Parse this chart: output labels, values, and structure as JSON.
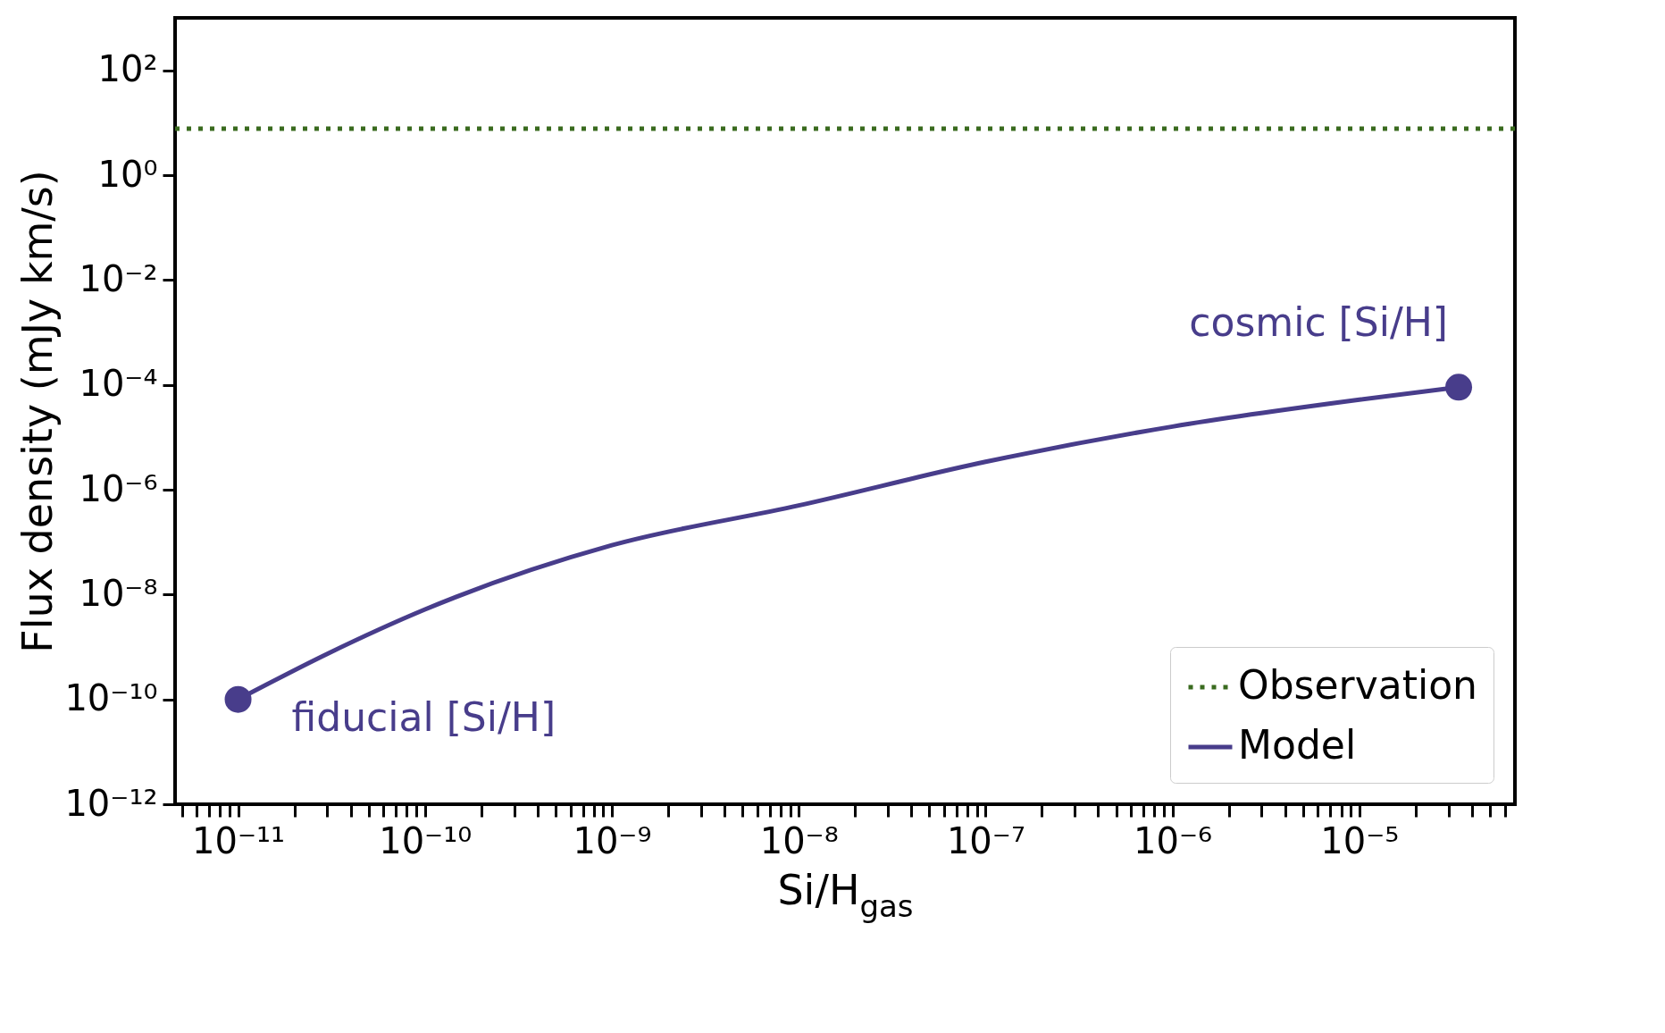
{
  "chart_data": {
    "type": "line",
    "xlabel": "Si/H$_{gas}$",
    "ylabel": "Flux density (mJy km/s)",
    "log": "xy",
    "xlim": [
      4.6e-12,
      6.8e-05
    ],
    "ylim": [
      1e-12,
      1000.0
    ],
    "xticks": [
      {
        "value": 5e-12,
        "label": null
      },
      {
        "value": 6e-12,
        "label": null
      },
      {
        "value": 7e-12,
        "label": null
      },
      {
        "value": 8e-12,
        "label": null
      },
      {
        "value": 9e-12,
        "label": null
      },
      {
        "value": 1e-11,
        "label": "10⁻¹¹"
      },
      {
        "value": 2e-11,
        "label": null
      },
      {
        "value": 3e-11,
        "label": null
      },
      {
        "value": 4e-11,
        "label": null
      },
      {
        "value": 5e-11,
        "label": null
      },
      {
        "value": 6e-11,
        "label": null
      },
      {
        "value": 7e-11,
        "label": null
      },
      {
        "value": 8e-11,
        "label": null
      },
      {
        "value": 9e-11,
        "label": null
      },
      {
        "value": 1e-10,
        "label": "10⁻¹⁰"
      },
      {
        "value": 2e-10,
        "label": null
      },
      {
        "value": 3e-10,
        "label": null
      },
      {
        "value": 4e-10,
        "label": null
      },
      {
        "value": 5e-10,
        "label": null
      },
      {
        "value": 6e-10,
        "label": null
      },
      {
        "value": 7e-10,
        "label": null
      },
      {
        "value": 8e-10,
        "label": null
      },
      {
        "value": 9e-10,
        "label": null
      },
      {
        "value": 1e-09,
        "label": "10⁻⁹"
      },
      {
        "value": 2e-09,
        "label": null
      },
      {
        "value": 3e-09,
        "label": null
      },
      {
        "value": 4e-09,
        "label": null
      },
      {
        "value": 5e-09,
        "label": null
      },
      {
        "value": 6e-09,
        "label": null
      },
      {
        "value": 7e-09,
        "label": null
      },
      {
        "value": 8e-09,
        "label": null
      },
      {
        "value": 9e-09,
        "label": null
      },
      {
        "value": 1e-08,
        "label": "10⁻⁸"
      },
      {
        "value": 2e-08,
        "label": null
      },
      {
        "value": 3e-08,
        "label": null
      },
      {
        "value": 4e-08,
        "label": null
      },
      {
        "value": 5e-08,
        "label": null
      },
      {
        "value": 6e-08,
        "label": null
      },
      {
        "value": 7e-08,
        "label": null
      },
      {
        "value": 8e-08,
        "label": null
      },
      {
        "value": 9e-08,
        "label": null
      },
      {
        "value": 1e-07,
        "label": "10⁻⁷"
      },
      {
        "value": 2e-07,
        "label": null
      },
      {
        "value": 3e-07,
        "label": null
      },
      {
        "value": 4e-07,
        "label": null
      },
      {
        "value": 5e-07,
        "label": null
      },
      {
        "value": 6e-07,
        "label": null
      },
      {
        "value": 7e-07,
        "label": null
      },
      {
        "value": 8e-07,
        "label": null
      },
      {
        "value": 9e-07,
        "label": null
      },
      {
        "value": 1e-06,
        "label": "10⁻⁶"
      },
      {
        "value": 2e-06,
        "label": null
      },
      {
        "value": 3e-06,
        "label": null
      },
      {
        "value": 4e-06,
        "label": null
      },
      {
        "value": 5e-06,
        "label": null
      },
      {
        "value": 6e-06,
        "label": null
      },
      {
        "value": 7e-06,
        "label": null
      },
      {
        "value": 8e-06,
        "label": null
      },
      {
        "value": 9e-06,
        "label": null
      },
      {
        "value": 1e-05,
        "label": "10⁻⁵"
      },
      {
        "value": 2e-05,
        "label": null
      },
      {
        "value": 3e-05,
        "label": null
      },
      {
        "value": 4e-05,
        "label": null
      },
      {
        "value": 5e-05,
        "label": null
      },
      {
        "value": 6e-05,
        "label": null
      }
    ],
    "yticks": [
      {
        "value": 1e-12,
        "label": "10⁻¹²"
      },
      {
        "value": 1e-10,
        "label": "10⁻¹⁰"
      },
      {
        "value": 1e-08,
        "label": "10⁻⁸"
      },
      {
        "value": 1e-06,
        "label": "10⁻⁶"
      },
      {
        "value": 0.0001,
        "label": "10⁻⁴"
      },
      {
        "value": 0.01,
        "label": "10⁻²"
      },
      {
        "value": 1,
        "label": "10⁰"
      },
      {
        "value": 100,
        "label": "10²"
      }
    ],
    "grid": false,
    "legend": "bottom right",
    "series": [
      {
        "name": "Model",
        "color": "#483d8b",
        "type": "line",
        "line_style": "solid",
        "marker": "none",
        "x": [
          1e-11,
          3e-11,
          1e-10,
          1e-09,
          1e-08,
          1e-07,
          1e-06,
          1e-05,
          3.4e-05
        ],
        "values": [
          1e-10,
          7.4e-10,
          5.2e-09,
          8.7e-08,
          5e-07,
          3.4e-06,
          1.6e-05,
          5.2e-05,
          9e-05
        ]
      }
    ],
    "ref_lines": [
      {
        "axis": "y",
        "value": 7.7,
        "label": "Observation",
        "color": "#3a6b1f",
        "line_style": "dotted"
      }
    ],
    "annotations": [
      {
        "text": "fiducial [Si/H]",
        "x": 1e-11,
        "y": 1e-10
      },
      {
        "text": "cosmic [Si/H]",
        "x": 3.4e-05,
        "y": 9e-05
      }
    ]
  }
}
